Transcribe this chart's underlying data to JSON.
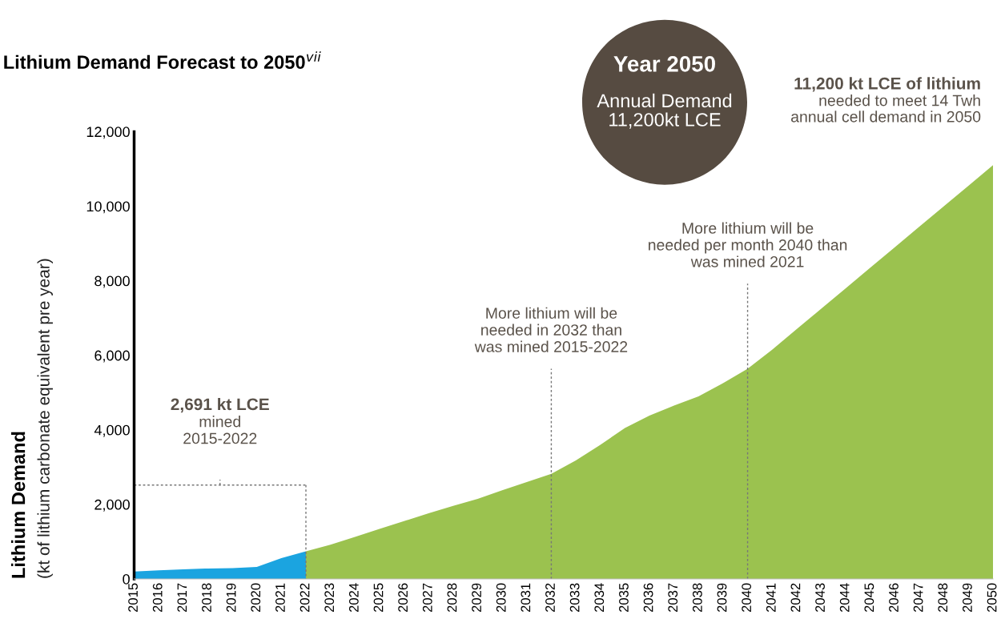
{
  "chart_data": {
    "type": "area",
    "title": "Lithium Demand Forecast to 2050$^{vii}$",
    "ylabel": "Lithium Demand\n(kt of lithium carbonate equivalent pre year)",
    "series": [
      {
        "color": "#1ba4e0",
        "x": [
          2015,
          2016,
          2017,
          2018,
          2019,
          2020,
          2021,
          2022
        ],
        "values": [
          200,
          230,
          260,
          280,
          290,
          320,
          560,
          740
        ]
      },
      {
        "color": "#9bc24f",
        "x": [
          2022,
          2023,
          2024,
          2025,
          2026,
          2027,
          2028,
          2029,
          2030,
          2031,
          2032,
          2033,
          2034,
          2035,
          2036,
          2037,
          2038,
          2039,
          2040,
          2041,
          2042,
          2043,
          2044,
          2045,
          2046,
          2047,
          2048,
          2049,
          2050
        ],
        "values": [
          740,
          920,
          1130,
          1340,
          1550,
          1760,
          1960,
          2150,
          2380,
          2600,
          2820,
          3180,
          3600,
          4050,
          4380,
          4650,
          4900,
          5250,
          5640,
          6150,
          6700,
          7250,
          7800,
          8350,
          8900,
          9450,
          10000,
          10550,
          11100
        ]
      }
    ],
    "xlim": [
      2015,
      2050
    ],
    "xticks": [
      2015,
      2016,
      2017,
      2018,
      2019,
      2020,
      2021,
      2022,
      2023,
      2024,
      2025,
      2026,
      2027,
      2028,
      2029,
      2030,
      2031,
      2032,
      2033,
      2034,
      2035,
      2036,
      2037,
      2038,
      2039,
      2040,
      2041,
      2042,
      2043,
      2044,
      2045,
      2046,
      2047,
      2048,
      2049,
      2050
    ],
    "ylim": [
      0,
      12000
    ],
    "yticks": [
      {
        "value": 0,
        "label": "0"
      },
      {
        "value": 2000,
        "label": "2,000"
      },
      {
        "value": 4000,
        "label": "4,000"
      },
      {
        "value": 6000,
        "label": "6,000"
      },
      {
        "value": 8000,
        "label": "8,000"
      },
      {
        "value": 10000,
        "label": "10,000"
      },
      {
        "value": 12000,
        "label": "12,000"
      }
    ],
    "grid": false,
    "legend": false,
    "ref_lines": [
      {
        "axis": "x",
        "value": 2032,
        "label": "More lithium will be\nneeded in 2032 than\nwas mined 2015-2022",
        "color": "#777777",
        "line_style": "dashed"
      },
      {
        "axis": "x",
        "value": 2040,
        "label": "More lithium will be\nneeded per month 2040 than\nwas mined 2021",
        "color": "#777777",
        "line_style": "dashed"
      }
    ],
    "annotations": [
      "2,691 kt LCE",
      "mined\n2015-2022",
      "Year 2050",
      "Annual Demand\n11,200kt LCE",
      "11,200 kt LCE of lithium",
      "needed to meet 14 Twh\nannual cell demand in 2050"
    ]
  }
}
